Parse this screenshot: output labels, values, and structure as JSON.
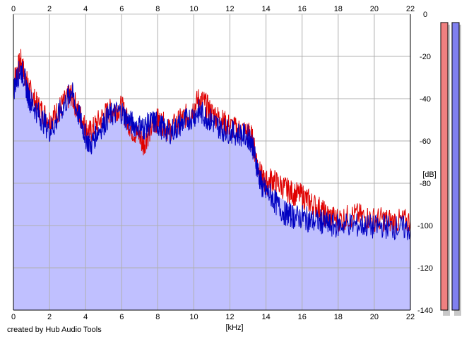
{
  "credit": "created by Hub Audio Tools",
  "chart_data": {
    "type": "area",
    "xlabel": "[kHz]",
    "ylabel": "[dB]",
    "xlim": [
      0,
      22
    ],
    "ylim": [
      -140,
      0
    ],
    "x_ticks": [
      0,
      2,
      4,
      6,
      8,
      10,
      12,
      14,
      16,
      18,
      20,
      22
    ],
    "y_ticks": [
      0,
      -20,
      -40,
      -60,
      -80,
      -100,
      -120,
      -140
    ],
    "y_tick_labels": [
      "0",
      "-20",
      "-40",
      "-60",
      "-80",
      "-100",
      "-120",
      "-140"
    ],
    "grid": true,
    "colors": {
      "fill": "#c0c0ff",
      "left_channel": "#e00000",
      "right_channel": "#0000c0",
      "grid": "#b0b0b0",
      "meter_left": "#f08080",
      "meter_right": "#8080f0"
    },
    "envelope": {
      "x": [
        0,
        0.2,
        0.4,
        0.6,
        0.8,
        1.0,
        1.2,
        1.5,
        1.8,
        2.0,
        2.3,
        2.6,
        3.0,
        3.2,
        3.4,
        3.7,
        4.0,
        4.2,
        4.5,
        4.8,
        5.0,
        5.3,
        5.6,
        6.0,
        6.3,
        6.6,
        7.0,
        7.3,
        7.6,
        8.0,
        8.3,
        8.6,
        9.0,
        9.3,
        9.6,
        10.0,
        10.2,
        10.5,
        10.8,
        11.0,
        11.3,
        11.6,
        12.0,
        12.3,
        12.6,
        13.0,
        13.2,
        13.4,
        13.6,
        13.8,
        14.0,
        14.3,
        14.6,
        15.0,
        15.3,
        15.6,
        16.0,
        16.3,
        16.6,
        17.0,
        17.3,
        17.6,
        18.0,
        18.5,
        19.0,
        19.5,
        20.0,
        20.5,
        21.0,
        21.5,
        22.0
      ],
      "y": [
        -35,
        -30,
        -28,
        -32,
        -38,
        -42,
        -45,
        -48,
        -52,
        -55,
        -53,
        -48,
        -42,
        -40,
        -45,
        -50,
        -55,
        -58,
        -57,
        -55,
        -53,
        -50,
        -48,
        -47,
        -48,
        -50,
        -52,
        -54,
        -53,
        -52,
        -53,
        -54,
        -52,
        -51,
        -50,
        -47,
        -46,
        -48,
        -50,
        -52,
        -53,
        -54,
        -55,
        -56,
        -57,
        -58,
        -62,
        -70,
        -78,
        -80,
        -82,
        -84,
        -86,
        -88,
        -90,
        -92,
        -94,
        -96,
        -97,
        -98,
        -98,
        -99,
        -99,
        -99,
        -99,
        -99,
        -99,
        -99,
        -99,
        -99,
        -100
      ]
    },
    "series": [
      {
        "x": [
          0,
          0.2,
          0.4,
          0.6,
          0.8,
          1.0,
          1.3,
          1.6,
          2.0,
          2.3,
          2.6,
          3.0,
          3.2,
          3.5,
          3.8,
          4.0,
          4.3,
          4.6,
          5.0,
          5.3,
          5.6,
          6.0,
          6.3,
          6.6,
          7.0,
          7.2,
          7.5,
          7.8,
          8.0,
          8.3,
          8.6,
          9.0,
          9.3,
          9.6,
          10.0,
          10.3,
          10.6,
          10.9,
          11.2,
          11.5,
          11.8,
          12.2,
          12.6,
          13.0,
          13.2,
          13.4,
          13.6,
          13.8,
          14.0,
          14.3,
          14.6,
          15.0,
          15.3,
          15.6,
          16.0,
          16.3,
          16.6,
          17.0,
          17.3,
          17.6,
          18.0,
          18.5,
          19.0,
          19.5,
          20.0,
          20.5,
          21.0,
          21.5,
          22.0
        ],
        "y": [
          -32,
          -27,
          -22,
          -28,
          -34,
          -38,
          -43,
          -46,
          -50,
          -48,
          -44,
          -40,
          -38,
          -44,
          -50,
          -54,
          -56,
          -52,
          -48,
          -46,
          -45,
          -44,
          -50,
          -55,
          -58,
          -62,
          -56,
          -52,
          -50,
          -52,
          -55,
          -52,
          -50,
          -48,
          -44,
          -40,
          -42,
          -46,
          -48,
          -50,
          -52,
          -54,
          -55,
          -56,
          -58,
          -66,
          -74,
          -78,
          -80,
          -78,
          -80,
          -82,
          -84,
          -85,
          -86,
          -88,
          -90,
          -92,
          -95,
          -96,
          -97,
          -96,
          -95,
          -96,
          -97,
          -97,
          -98,
          -98,
          -98
        ]
      },
      {
        "x": [
          0,
          0.2,
          0.4,
          0.6,
          0.8,
          1.0,
          1.3,
          1.6,
          2.0,
          2.3,
          2.6,
          3.0,
          3.2,
          3.5,
          3.8,
          4.0,
          4.3,
          4.6,
          5.0,
          5.3,
          5.6,
          6.0,
          6.3,
          6.6,
          7.0,
          7.2,
          7.5,
          7.8,
          8.0,
          8.3,
          8.6,
          9.0,
          9.3,
          9.6,
          10.0,
          10.3,
          10.6,
          10.9,
          11.2,
          11.5,
          11.8,
          12.2,
          12.6,
          13.0,
          13.2,
          13.4,
          13.6,
          13.8,
          14.0,
          14.3,
          14.6,
          15.0,
          15.3,
          15.6,
          16.0,
          16.3,
          16.6,
          17.0,
          17.3,
          17.6,
          18.0,
          18.5,
          19.0,
          19.5,
          20.0,
          20.5,
          21.0,
          21.5,
          22.0
        ],
        "y": [
          -36,
          -30,
          -26,
          -30,
          -38,
          -42,
          -46,
          -50,
          -55,
          -52,
          -46,
          -40,
          -36,
          -45,
          -52,
          -58,
          -62,
          -56,
          -52,
          -48,
          -47,
          -46,
          -50,
          -52,
          -53,
          -54,
          -52,
          -51,
          -52,
          -54,
          -56,
          -54,
          -52,
          -50,
          -48,
          -46,
          -48,
          -50,
          -52,
          -54,
          -55,
          -56,
          -57,
          -58,
          -60,
          -68,
          -76,
          -82,
          -84,
          -86,
          -90,
          -94,
          -95,
          -96,
          -96,
          -97,
          -98,
          -98,
          -99,
          -100,
          -100,
          -99,
          -100,
          -100,
          -101,
          -100,
          -101,
          -101,
          -102
        ]
      }
    ],
    "level_meters": [
      {
        "level": -140
      },
      {
        "level": -140
      }
    ]
  }
}
